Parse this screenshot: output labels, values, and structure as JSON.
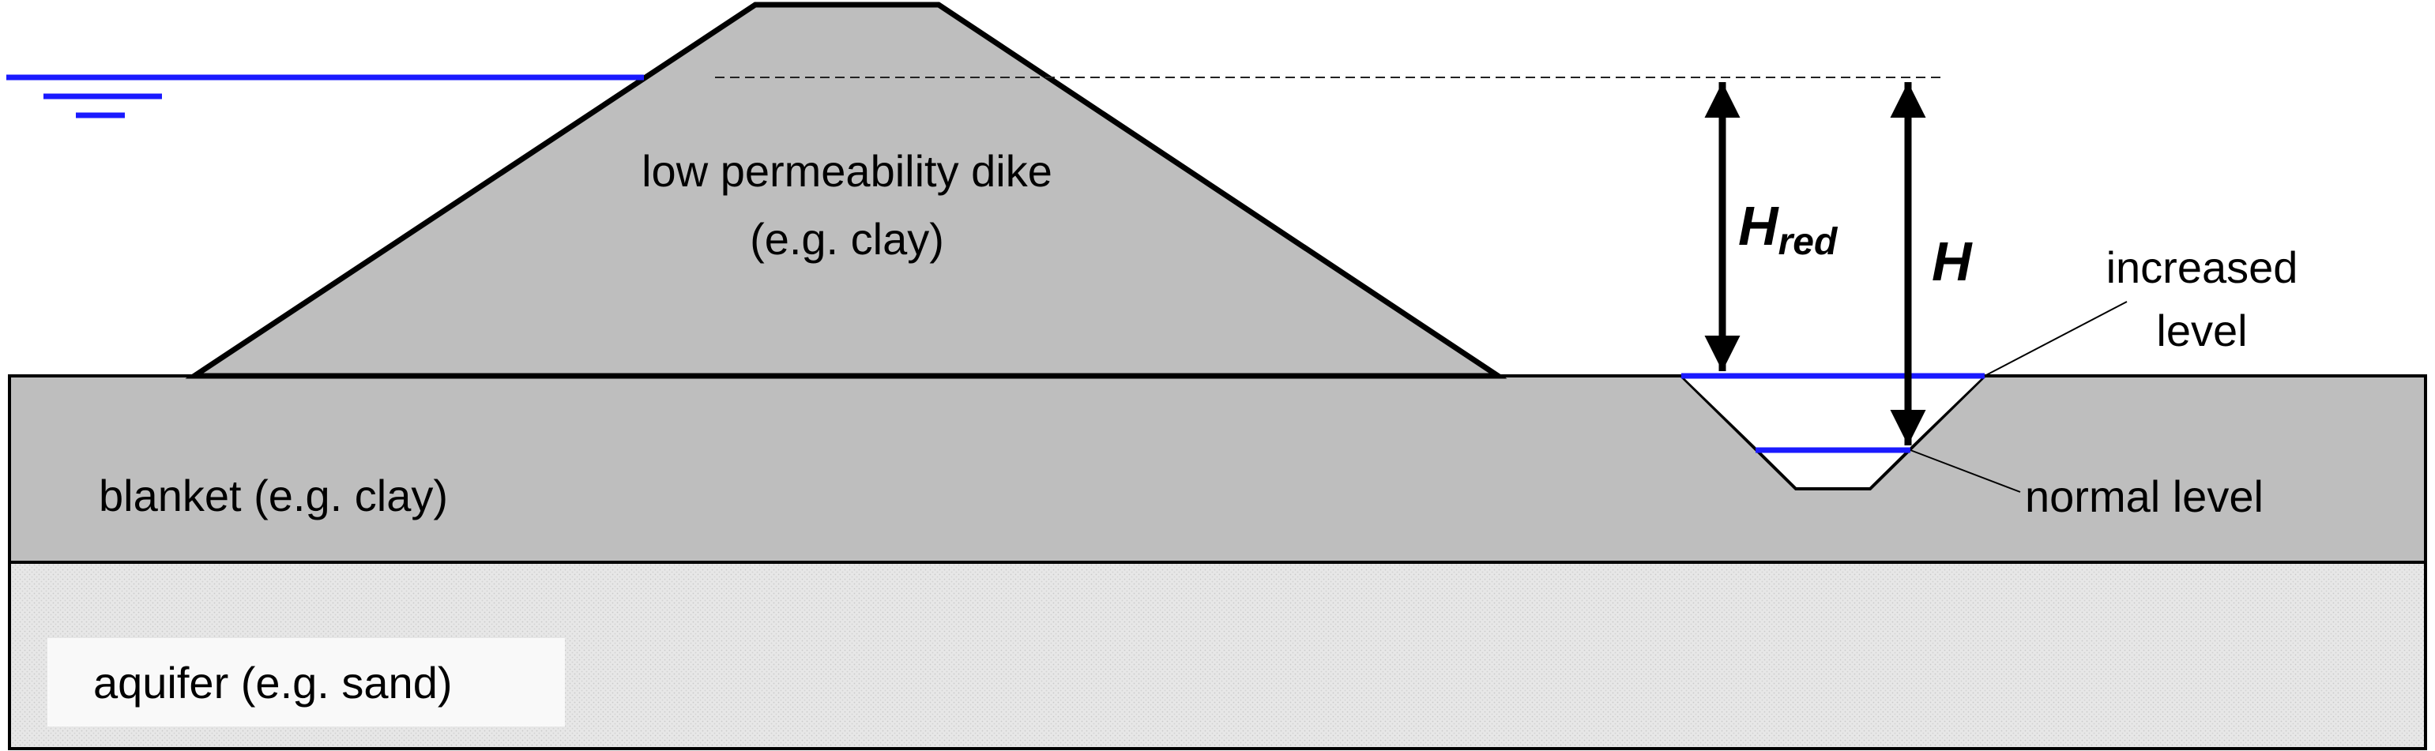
{
  "labels": {
    "dike_line1": "low permeability dike",
    "dike_line2": "(e.g. clay)",
    "blanket": "blanket (e.g. clay)",
    "aquifer": "aquifer (e.g. sand)",
    "h_red_main": "H",
    "h_red_sub": "red",
    "h": "H",
    "increased_line1": "increased",
    "increased_line2": "level",
    "normal": "normal level"
  },
  "colors": {
    "soil_fill": "#bebebe",
    "aquifer_fill": "#e6e6e6",
    "water_line": "#1a1aff",
    "outline": "#000000"
  }
}
